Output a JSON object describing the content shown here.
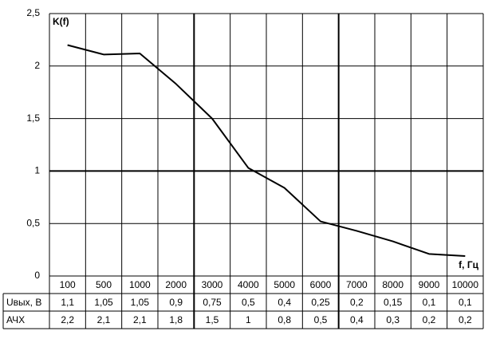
{
  "chart_data": {
    "type": "line",
    "x_label": "f, Гц",
    "y_label": "K(f)",
    "categories": [
      "100",
      "500",
      "1000",
      "2000",
      "3000",
      "4000",
      "5000",
      "6000",
      "7000",
      "8000",
      "9000",
      "10000"
    ],
    "series": [
      {
        "name": "АЧХ",
        "color": "#000000",
        "values": [
          2.2,
          2.11,
          2.12,
          1.83,
          1.5,
          1.03,
          0.84,
          0.52,
          0.43,
          0.33,
          0.21,
          0.19
        ]
      }
    ],
    "ylim": [
      0,
      2.5
    ],
    "yticks": [
      0,
      {
        "value": 0.5,
        "label": "0,5"
      },
      1,
      {
        "value": 1.5,
        "label": "1,5"
      },
      2,
      {
        "value": 2.5,
        "label": "2,5"
      }
    ],
    "grid": true
  },
  "table": {
    "rows": [
      {
        "label": "Uвых, В",
        "cells": [
          "1,1",
          "1,05",
          "1,05",
          "0,9",
          "0,75",
          "0,5",
          "0,4",
          "0,25",
          "0,2",
          "0,15",
          "0,1",
          "0,1"
        ]
      },
      {
        "label": "АЧХ",
        "cells": [
          "2,2",
          "2,1",
          "2,1",
          "1,8",
          "1,5",
          "1",
          "0,8",
          "0,5",
          "0,4",
          "0,3",
          "0,2",
          "0,2"
        ]
      }
    ]
  }
}
